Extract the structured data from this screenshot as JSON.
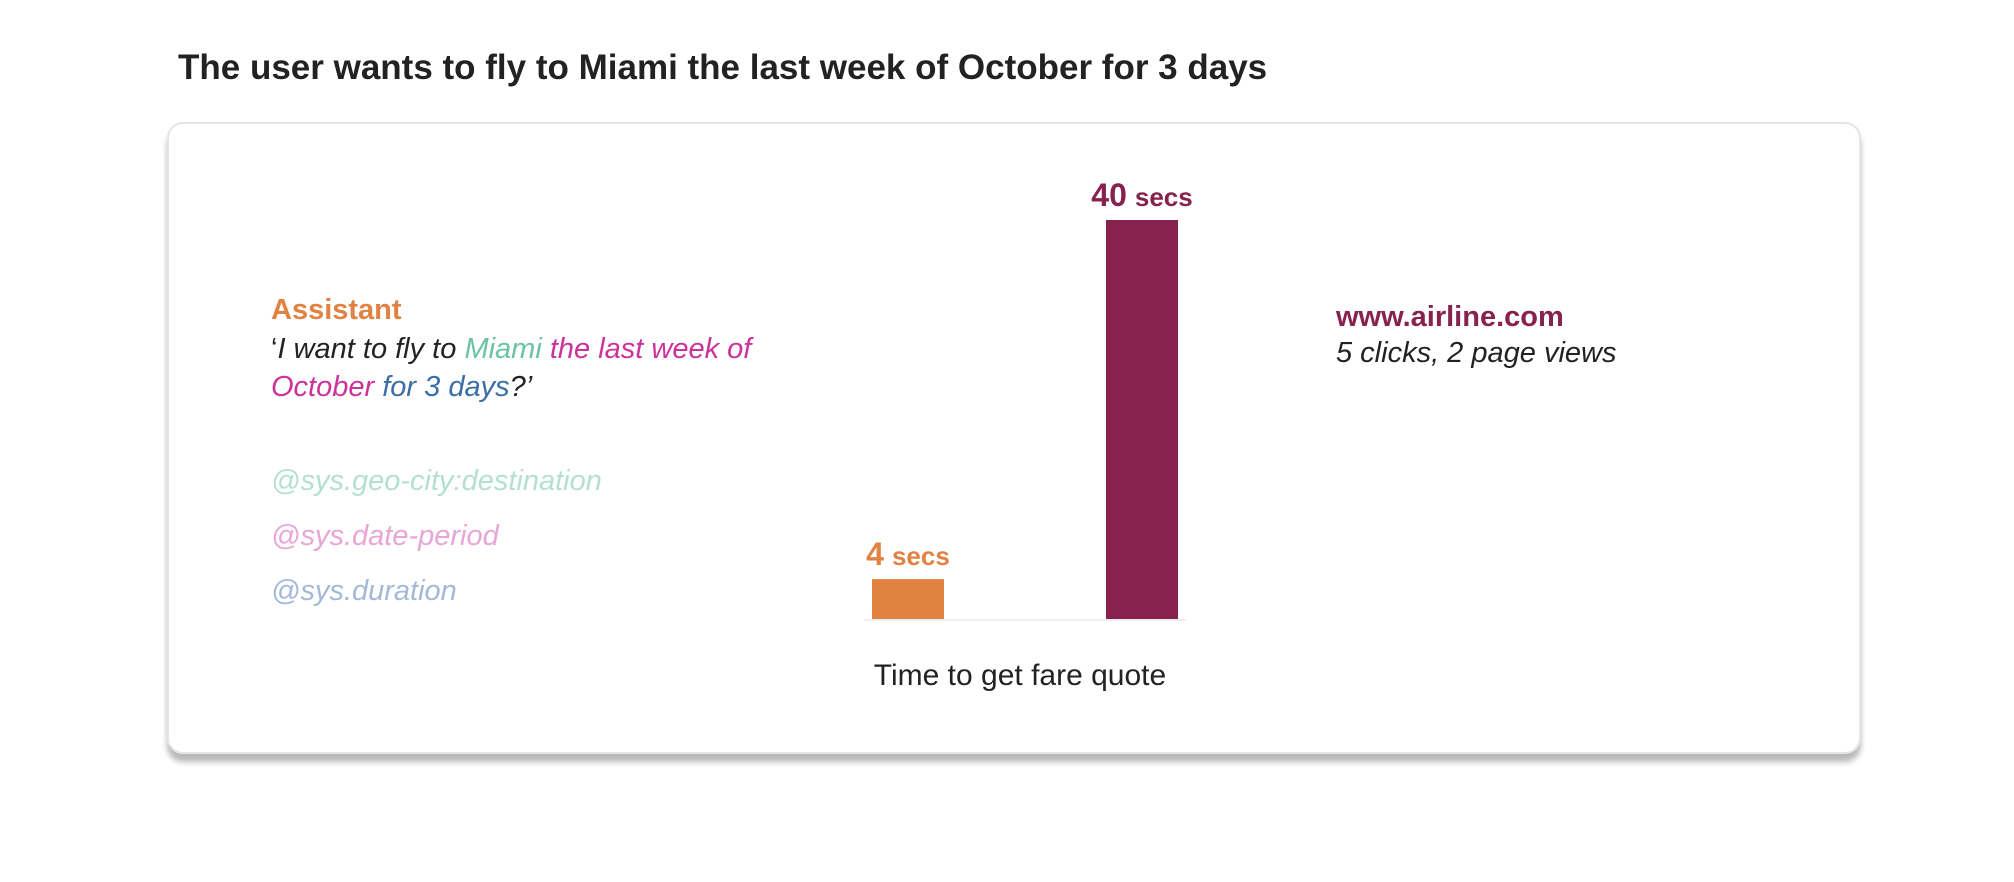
{
  "headline": "The user wants to fly to Miami the last week of October for 3 days",
  "assistant": {
    "title": "Assistant",
    "utterance": [
      {
        "text": "‘",
        "color": "#222222"
      },
      {
        "text": "I want to fly to ",
        "color": "#222222"
      },
      {
        "text": "Miami",
        "color": "#6cc3a4"
      },
      {
        "text": " the last week of October",
        "color": "#cc3399"
      },
      {
        "text": " for 3 days",
        "color": "#3a6ea5"
      },
      {
        "text": "?’",
        "color": "#222222"
      }
    ],
    "entities": [
      {
        "text": "@sys.geo-city:destination",
        "color": "#b3e0d1"
      },
      {
        "text": "@sys.date-period",
        "color": "#e8a6d6"
      },
      {
        "text": "@sys.duration",
        "color": "#a3b9d6"
      }
    ]
  },
  "website": {
    "title": "www.airline.com",
    "subtitle": "5 clicks, 2 page views"
  },
  "chart_data": {
    "type": "bar",
    "categories": [
      "Assistant",
      "www.airline.com"
    ],
    "values": [
      4,
      40
    ],
    "labels": [
      {
        "num": "4",
        "unit": "secs"
      },
      {
        "num": "40",
        "unit": "secs"
      }
    ],
    "colors": [
      "#e08242",
      "#87224f"
    ],
    "xlabel": "Time to get fare quote",
    "ylabel": "",
    "ylim": [
      0,
      40
    ],
    "grid": false,
    "legend": "none"
  },
  "colors": {
    "assistant_accent": "#e08242",
    "airline_accent": "#87224f"
  }
}
